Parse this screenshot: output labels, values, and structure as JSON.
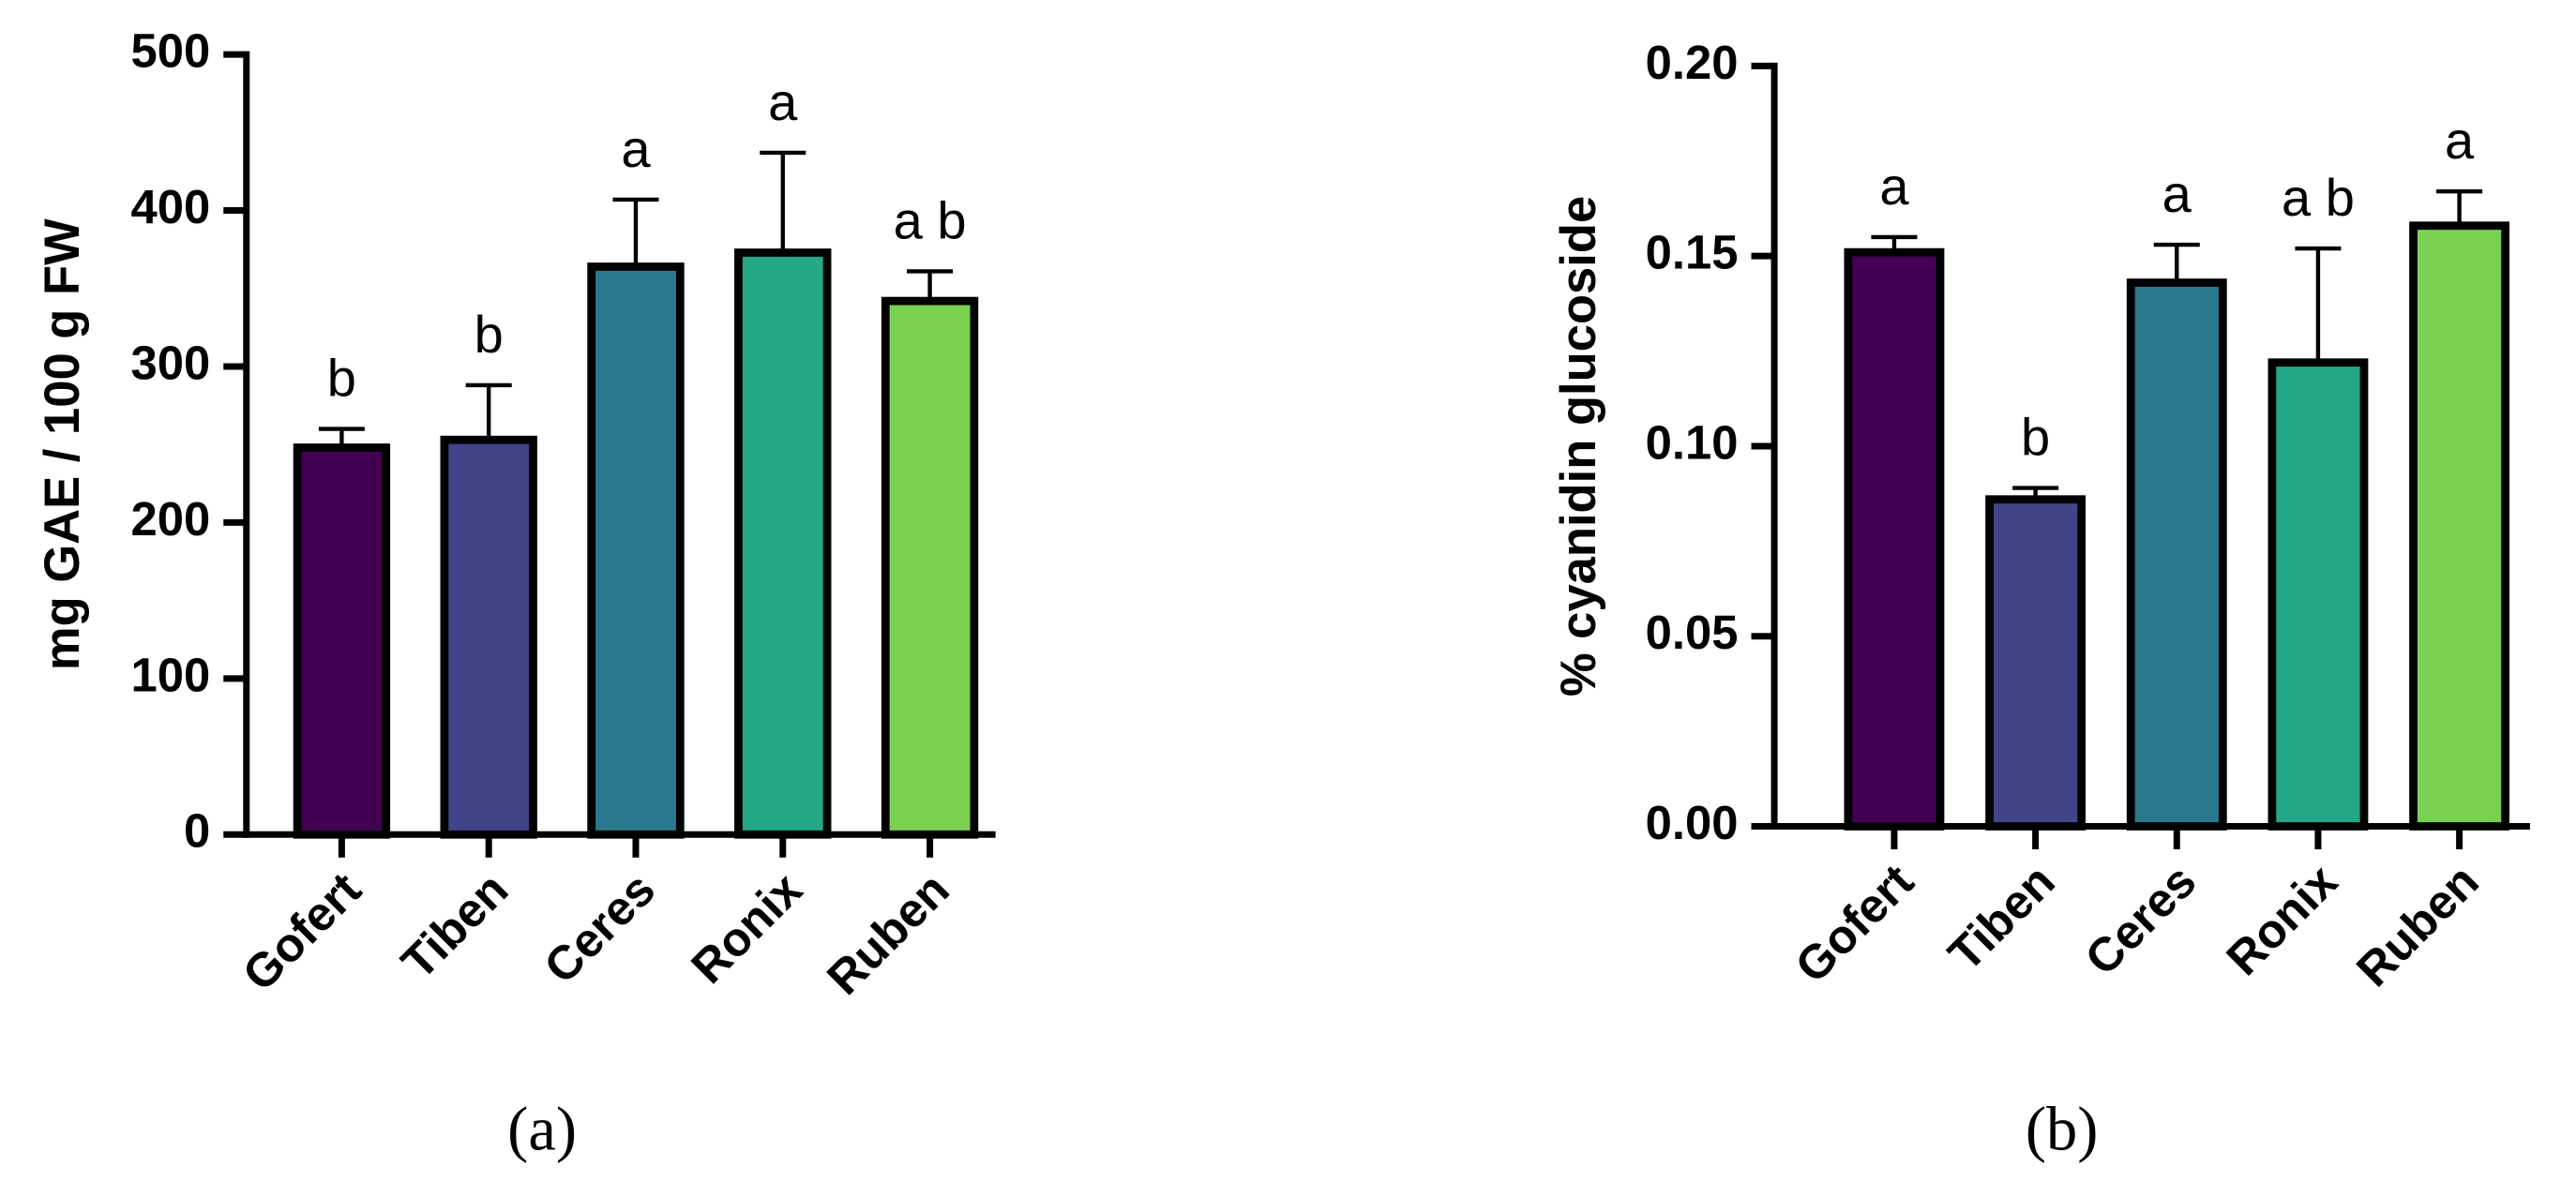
{
  "chart_data": [
    {
      "type": "bar",
      "panel_label": "(a)",
      "y_label": "mg GAE / 100 g FW",
      "categories": [
        "Gofert",
        "Tiben",
        "Ceres",
        "Ronix",
        "Ruben"
      ],
      "values": [
        248,
        253,
        364,
        373,
        342
      ],
      "errors": [
        12,
        35,
        43,
        64,
        19
      ],
      "letters": [
        "b",
        "b",
        "a",
        "a",
        "a b"
      ],
      "colors": [
        "#440154",
        "#414487",
        "#2a788e",
        "#22a884",
        "#7ad151"
      ],
      "ylim": [
        0,
        500
      ],
      "yticks": [
        0,
        100,
        200,
        300,
        400,
        500
      ]
    },
    {
      "type": "bar",
      "panel_label": "(b)",
      "y_label": "% cyanidin glucoside",
      "categories": [
        "Gofert",
        "Tiben",
        "Ceres",
        "Ronix",
        "Ruben"
      ],
      "values": [
        0.151,
        0.086,
        0.143,
        0.122,
        0.158
      ],
      "errors": [
        0.004,
        0.003,
        0.01,
        0.03,
        0.009
      ],
      "letters": [
        "a",
        "b",
        "a",
        "a b",
        "a"
      ],
      "colors": [
        "#440154",
        "#414487",
        "#2a788e",
        "#22a884",
        "#7ad151"
      ],
      "ylim": [
        0,
        0.2
      ],
      "yticks": [
        {
          "value": 0,
          "label": "0.00"
        },
        {
          "value": 0.05,
          "label": "0.05"
        },
        {
          "value": 0.1,
          "label": "0.10"
        },
        {
          "value": 0.15,
          "label": "0.15"
        },
        {
          "value": 0.2,
          "label": "0.20"
        }
      ]
    }
  ]
}
